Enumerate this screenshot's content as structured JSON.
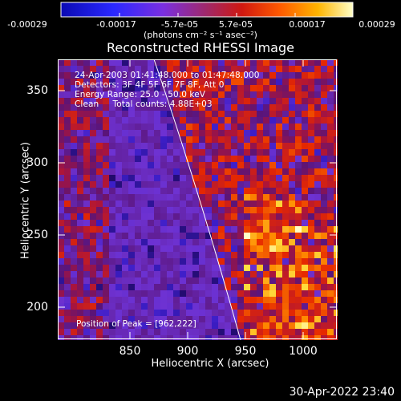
{
  "colorbar": {
    "tick_labels": [
      "-0.00029",
      "-0.00017",
      "-5.7e-05",
      "5.7e-05",
      "0.00017",
      "0.00029"
    ],
    "units": "(photons cm⁻² s⁻¹ asec⁻²)"
  },
  "title": "Reconstructed RHESSI Image",
  "info": {
    "time_range": "24-Apr-2003 01:41:48.000 to 01:47:48.000",
    "detectors": "Detectors: 3F 4F 5F 6F 7F 8F, Att 0",
    "energy": "Energy Range: 25.0 - 50.0 keV",
    "clean": "Clean     Total counts: 4.88E+03"
  },
  "peak": "Position of Peak = [962,222]",
  "x_axis": {
    "label": "Heliocentric X (arcsec)",
    "ticks": [
      "850",
      "900",
      "950",
      "1000"
    ]
  },
  "y_axis": {
    "label": "Heliocentric Y (arcsec)",
    "ticks": [
      "350",
      "300",
      "250",
      "200"
    ]
  },
  "timestamp": "30-Apr-2022 23:40",
  "colors": {
    "background": "#000000",
    "axes": "#ffffff",
    "limb": "#ffffff"
  }
}
